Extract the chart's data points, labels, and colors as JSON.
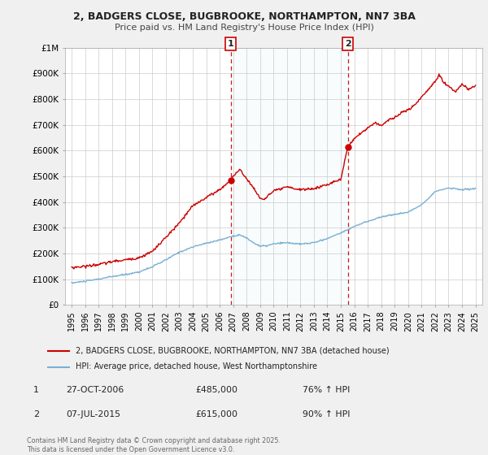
{
  "title1": "2, BADGERS CLOSE, BUGBROOKE, NORTHAMPTON, NN7 3BA",
  "title2": "Price paid vs. HM Land Registry's House Price Index (HPI)",
  "bg_color": "#f0f0f0",
  "plot_bg_color": "#ffffff",
  "red_color": "#cc0000",
  "blue_color": "#7ab0d4",
  "marker1_x": 2006.83,
  "marker1_y": 485000,
  "marker2_x": 2015.52,
  "marker2_y": 615000,
  "vline1_x": 2006.83,
  "vline2_x": 2015.52,
  "legend1": "2, BADGERS CLOSE, BUGBROOKE, NORTHAMPTON, NN7 3BA (detached house)",
  "legend2": "HPI: Average price, detached house, West Northamptonshire",
  "table_row1": [
    "1",
    "27-OCT-2006",
    "£485,000",
    "76% ↑ HPI"
  ],
  "table_row2": [
    "2",
    "07-JUL-2015",
    "£615,000",
    "90% ↑ HPI"
  ],
  "footnote": "Contains HM Land Registry data © Crown copyright and database right 2025.\nThis data is licensed under the Open Government Licence v3.0.",
  "ylim": [
    0,
    1000000
  ],
  "yticks": [
    0,
    100000,
    200000,
    300000,
    400000,
    500000,
    600000,
    700000,
    800000,
    900000,
    1000000
  ],
  "ytick_labels": [
    "£0",
    "£100K",
    "£200K",
    "£300K",
    "£400K",
    "£500K",
    "£600K",
    "£700K",
    "£800K",
    "£900K",
    "£1M"
  ],
  "xlim_start": 1994.5,
  "xlim_end": 2025.5,
  "xticks": [
    1995,
    1996,
    1997,
    1998,
    1999,
    2000,
    2001,
    2002,
    2003,
    2004,
    2005,
    2006,
    2007,
    2008,
    2009,
    2010,
    2011,
    2012,
    2013,
    2014,
    2015,
    2016,
    2017,
    2018,
    2019,
    2020,
    2021,
    2022,
    2023,
    2024,
    2025
  ]
}
